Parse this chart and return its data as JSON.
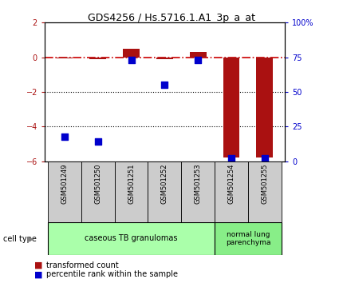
{
  "title": "GDS4256 / Hs.5716.1.A1_3p_a_at",
  "samples": [
    "GSM501249",
    "GSM501250",
    "GSM501251",
    "GSM501252",
    "GSM501253",
    "GSM501254",
    "GSM501255"
  ],
  "transformed_count": [
    -0.05,
    -0.1,
    0.5,
    -0.1,
    0.3,
    -5.8,
    -5.8
  ],
  "percentile_rank": [
    18,
    14,
    73,
    55,
    73,
    2,
    2
  ],
  "ylim": [
    -6,
    2
  ],
  "y2lim": [
    0,
    100
  ],
  "yticks": [
    -6,
    -4,
    -2,
    0,
    2
  ],
  "y2ticks": [
    0,
    25,
    50,
    75,
    100
  ],
  "red_color": "#AA1111",
  "blue_color": "#0000CC",
  "dashed_line_color": "#CC0000",
  "groups": [
    {
      "label": "caseous TB granulomas",
      "samples": [
        0,
        1,
        2,
        3,
        4
      ],
      "color": "#AAFFAA"
    },
    {
      "label": "normal lung\nparenchyma",
      "samples": [
        5,
        6
      ],
      "color": "#88EE88"
    }
  ],
  "cell_type_label": "cell type",
  "legend_items": [
    {
      "color": "#AA1111",
      "label": "transformed count"
    },
    {
      "color": "#0000CC",
      "label": "percentile rank within the sample"
    }
  ],
  "bar_width": 0.5,
  "dot_size": 40
}
